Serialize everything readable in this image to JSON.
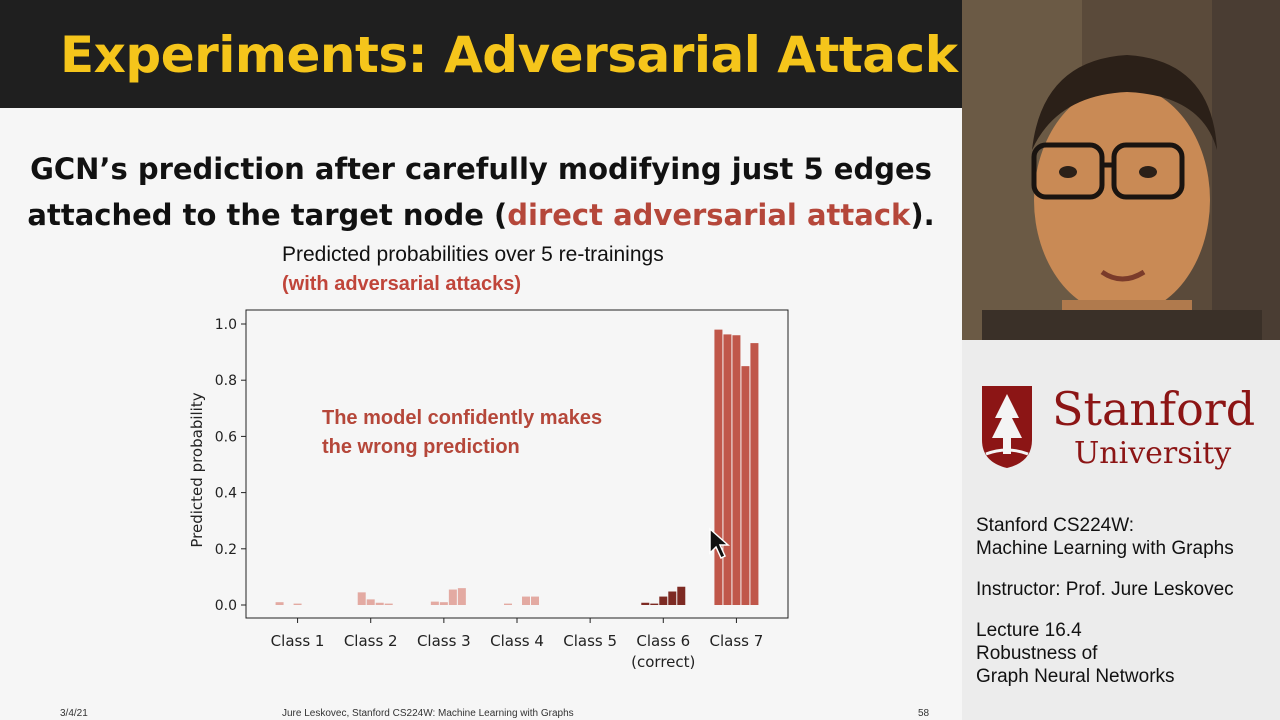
{
  "slide": {
    "title": "Experiments: Adversarial Attack",
    "heading_line1": "GCN’s prediction after carefully modifying just 5 edges",
    "heading_line2_pre": "attached to the target node (",
    "heading_line2_accent": "direct adversarial attack",
    "heading_line2_post": ").",
    "footer_date": "3/4/21",
    "footer_center": "Jure Leskovec, Stanford CS224W: Machine Learning with Graphs",
    "footer_page": "58"
  },
  "chart_data": {
    "type": "bar",
    "title": "Predicted probabilities over 5 re-trainings",
    "subtitle": "(with adversarial attacks)",
    "ylabel": "Predicted probability",
    "xlabel": "",
    "ylim": [
      0,
      1.05
    ],
    "yticks": [
      "0.0",
      "0.2",
      "0.4",
      "0.6",
      "0.8",
      "1.0"
    ],
    "annotation_line1": "The model confidently makes",
    "annotation_line2": "the wrong prediction",
    "categories": [
      "Class 1",
      "Class 2",
      "Class 3",
      "Class 4",
      "Class 5",
      "Class 6",
      "Class 7"
    ],
    "category_sublabels": [
      "",
      "",
      "",
      "",
      "",
      "(correct)",
      ""
    ],
    "series_values": [
      [
        0.01,
        0.0,
        0.005,
        0.0,
        0.0
      ],
      [
        0.0,
        0.045,
        0.02,
        0.008,
        0.005
      ],
      [
        0.0,
        0.012,
        0.01,
        0.055,
        0.06
      ],
      [
        0.0,
        0.005,
        0.0,
        0.03,
        0.03
      ],
      [
        0.0,
        0.0,
        0.0,
        0.0,
        0.0
      ],
      [
        0.008,
        0.005,
        0.03,
        0.048,
        0.065
      ],
      [
        0.98,
        0.963,
        0.96,
        0.85,
        0.932
      ]
    ],
    "colors": {
      "strong": "#c0574a",
      "dark": "#7d2a23",
      "faint": "#e3aaa2"
    }
  },
  "sidebar": {
    "logo_word1": "Stanford",
    "logo_word2": "University",
    "course_line1": "Stanford CS224W:",
    "course_line2": "Machine Learning with Graphs",
    "instructor": "Instructor: Prof. Jure Leskovec",
    "lecture_line1": "Lecture 16.4",
    "lecture_line2": "Robustness of",
    "lecture_line3": "Graph Neural Networks"
  }
}
